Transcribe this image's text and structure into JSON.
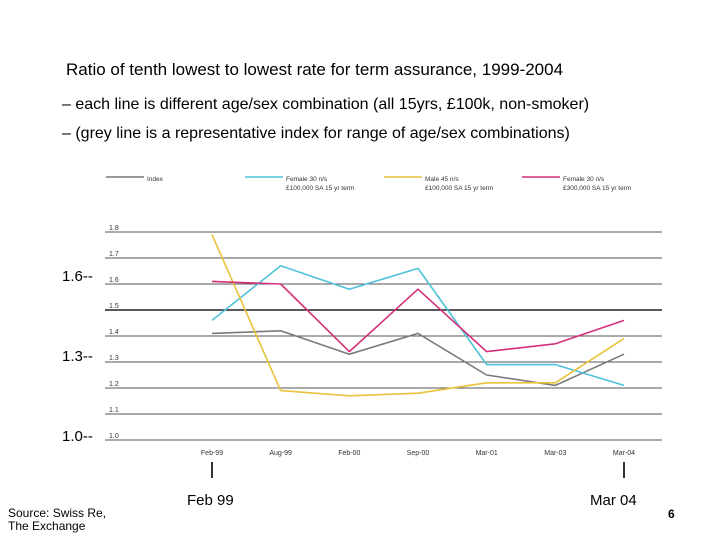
{
  "slide": {
    "title": "Ratio of tenth lowest to lowest rate for term assurance, 1999-2004",
    "subtitle_1": "– each line is different age/sex combination (all 15yrs, £100k, non-smoker)",
    "subtitle_2": "– (grey line is a representative index for range of age/sex combinations)",
    "source_line_1": "Source: Swiss Re,",
    "source_line_2": "The Exchange",
    "marker_left": "Feb 99",
    "marker_right": "Mar 04",
    "page_number": "6",
    "big_ticks": [
      "1.6--",
      "1.3--",
      "1.0--"
    ]
  },
  "chart_data": {
    "type": "line",
    "categories": [
      "Feb-99",
      "Aug-99",
      "Feb-00",
      "Sep-00",
      "Mar-01",
      "Mar-03",
      "Mar-04"
    ],
    "ylim": [
      1.0,
      1.8
    ],
    "yticks": [
      "1.8",
      "1.7",
      "1.6",
      "1.5",
      "1.4",
      "1.3",
      "1.2",
      "1.1",
      "1.0"
    ],
    "grid": true,
    "legend_position": "top",
    "series": [
      {
        "name": "Index",
        "legend_line_2": "",
        "color": "#7a7a7a",
        "values": [
          1.41,
          1.42,
          1.33,
          1.41,
          1.25,
          1.21,
          1.33
        ]
      },
      {
        "name": "Female 30 n/s",
        "legend_line_2": "£100,000 SA 15 yr term",
        "color": "#4fc3d9",
        "values": [
          1.46,
          1.67,
          1.58,
          1.66,
          1.29,
          1.29,
          1.21
        ]
      },
      {
        "name": "Male 45 n/s",
        "legend_line_2": "£100,000 SA 15 yr term",
        "color": "#e8c23a",
        "values": [
          1.79,
          1.19,
          1.17,
          1.18,
          1.22,
          1.22,
          1.39
        ]
      },
      {
        "name": "Female 30 n/s",
        "legend_line_2": "£300,000 SA 15 yr term",
        "color": "#d4307a",
        "values": [
          1.61,
          1.6,
          1.34,
          1.58,
          1.34,
          1.37,
          1.46
        ]
      }
    ]
  }
}
